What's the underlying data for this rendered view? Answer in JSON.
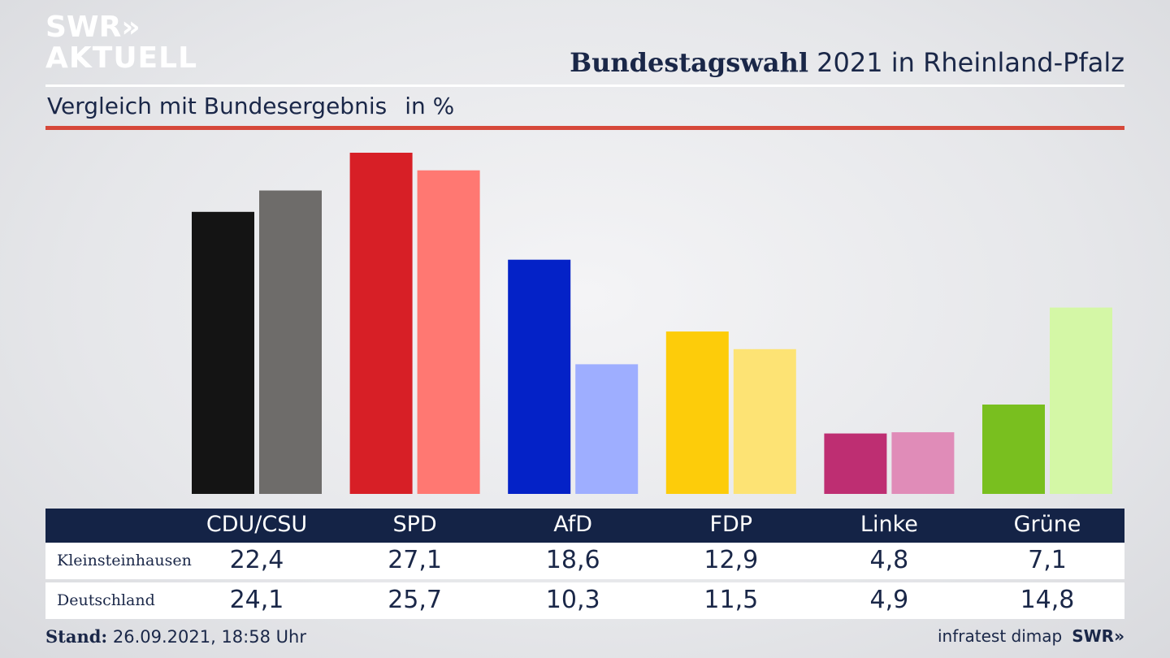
{
  "header": {
    "logo_line1": "SWR»",
    "logo_line2": "AKTUELL",
    "title_bold": "Bundestagswahl",
    "title_rest": " 2021 in Rheinland-Pfalz",
    "subtitle": "Vergleich mit Bundesergebnis",
    "unit": "in %"
  },
  "colors": {
    "header_band": "#142346",
    "red_rule": "#d6483a",
    "text": "#1a2748"
  },
  "chart_data": {
    "type": "bar",
    "categories": [
      "CDU/CSU",
      "SPD",
      "AfD",
      "FDP",
      "Linke",
      "Grüne"
    ],
    "series": [
      {
        "name": "Kleinsteinhausen",
        "values": [
          22.4,
          27.1,
          18.6,
          12.9,
          4.8,
          7.1
        ],
        "display": [
          "22,4",
          "27,1",
          "18,6",
          "12,9",
          "4,8",
          "7,1"
        ],
        "colors": [
          "#141414",
          "#d71f26",
          "#0422c7",
          "#fdcc0a",
          "#be2e72",
          "#79bf1f"
        ]
      },
      {
        "name": "Deutschland",
        "values": [
          24.1,
          25.7,
          10.3,
          11.5,
          4.9,
          14.8
        ],
        "display": [
          "24,1",
          "25,7",
          "10,3",
          "11,5",
          "4,9",
          "14,8"
        ],
        "colors": [
          "#6e6c6a",
          "#ff7872",
          "#9eaeff",
          "#fde374",
          "#e08cb8",
          "#d4f7a6"
        ]
      }
    ],
    "ylim": [
      0,
      27.1
    ],
    "grid": false,
    "legend": "table-bottom"
  },
  "footer": {
    "stand_label": "Stand:",
    "stand_value": " 26.09.2021, 18:58 Uhr",
    "source": "infratest dimap",
    "brand": "SWR»"
  }
}
